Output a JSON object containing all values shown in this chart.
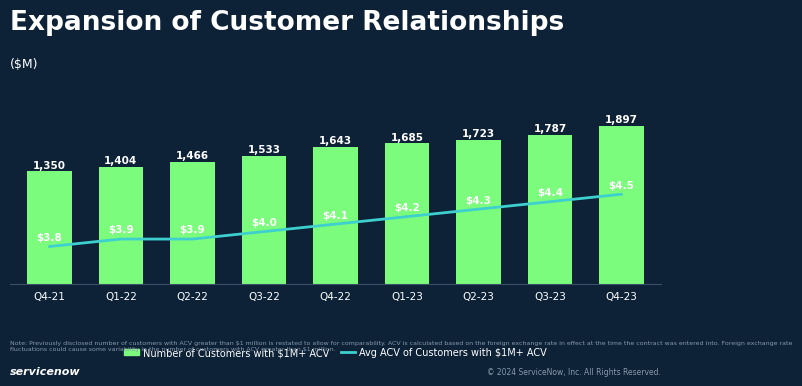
{
  "title": "Expansion of Customer Relationships",
  "subtitle": "($M)",
  "categories": [
    "Q4-21",
    "Q1-22",
    "Q2-22",
    "Q3-22",
    "Q4-22",
    "Q1-23",
    "Q2-23",
    "Q3-23",
    "Q4-23"
  ],
  "bar_values": [
    1350,
    1404,
    1466,
    1533,
    1643,
    1685,
    1723,
    1787,
    1897
  ],
  "line_values": [
    3.8,
    3.9,
    3.9,
    4.0,
    4.1,
    4.2,
    4.3,
    4.4,
    4.5
  ],
  "line_labels": [
    "$3.8",
    "$3.9",
    "$3.9",
    "$4.0",
    "$4.1",
    "$4.2",
    "$4.3",
    "$4.4",
    "$4.5"
  ],
  "bar_color": "#7CFC7C",
  "line_color": "#3ECFCF",
  "background_color": "#0D2137",
  "text_color": "#FFFFFF",
  "title_fontsize": 19,
  "subtitle_fontsize": 9,
  "bar_label_fontsize": 7.5,
  "line_label_fontsize": 7.5,
  "legend_bar_label": "Number of Customers with $1M+ ACV",
  "legend_line_label": "Avg ACV of Customers with $1M+ ACV",
  "note_text": "Note: Previously disclosed number of customers with ACV greater than $1 million is restated to allow for comparability. ACV is calculated based on the foreign exchange rate in effect at the time the contract was entered into. Foreign exchange rate\nfluctuations could cause some variability in the number of customers with ACV greater than $1 million.",
  "footer_left": "servicenow",
  "footer_right": "© 2024 ServiceNow, Inc. All Rights Reserved.",
  "ylim_bar": [
    0,
    2600
  ],
  "ylim_line_min": 3.3,
  "ylim_line_max": 6.2
}
